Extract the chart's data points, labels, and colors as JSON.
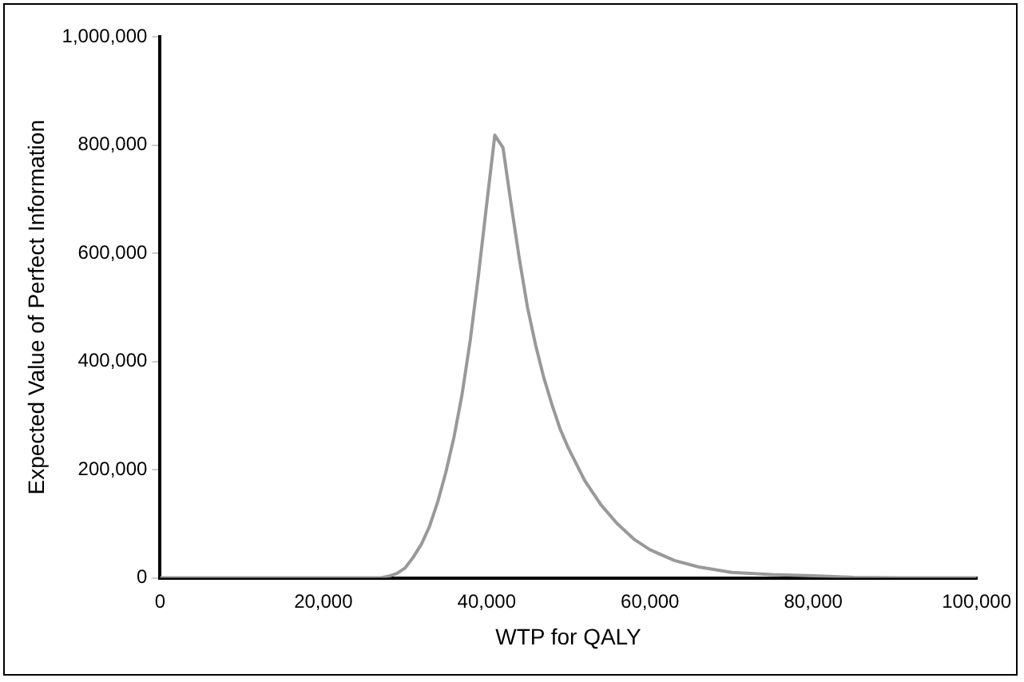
{
  "chart_data": {
    "type": "line",
    "xlabel": "WTP for QALY",
    "ylabel": "Expected Value of Perfect Information",
    "x": [
      0,
      10000,
      20000,
      27000,
      28000,
      29000,
      30000,
      31000,
      32000,
      33000,
      34000,
      35000,
      36000,
      37000,
      38000,
      39000,
      40000,
      41000,
      42000,
      43000,
      44000,
      45000,
      46000,
      47000,
      48000,
      49000,
      50000,
      52000,
      54000,
      56000,
      58000,
      60000,
      63000,
      66000,
      70000,
      75000,
      80000,
      85000,
      90000,
      100000
    ],
    "series": [
      {
        "color": "#999999",
        "values": [
          0,
          0,
          0,
          0,
          3000,
          8000,
          18000,
          38000,
          62000,
          95000,
          140000,
          195000,
          260000,
          340000,
          440000,
          560000,
          690000,
          818000,
          795000,
          690000,
          590000,
          500000,
          430000,
          370000,
          320000,
          275000,
          240000,
          180000,
          135000,
          100000,
          72000,
          52000,
          32000,
          20000,
          10000,
          6000,
          4000,
          1000,
          0,
          0
        ]
      }
    ],
    "xlim": [
      0,
      100000
    ],
    "xticks": [
      0,
      {
        "value": 20000,
        "label": "20,000"
      },
      {
        "value": 40000,
        "label": "40,000"
      },
      {
        "value": 60000,
        "label": "60,000"
      },
      {
        "value": 80000,
        "label": "80,000"
      },
      {
        "value": 100000,
        "label": "100,000"
      }
    ],
    "ylim": [
      0,
      1000000
    ],
    "yticks": [
      0,
      {
        "value": 200000,
        "label": "200,000"
      },
      {
        "value": 400000,
        "label": "400,000"
      },
      {
        "value": 600000,
        "label": "600,000"
      },
      {
        "value": 800000,
        "label": "800,000"
      },
      {
        "value": 1000000,
        "label": "1,000,000"
      }
    ],
    "grid": false,
    "legend": false,
    "marker": "none",
    "line_style": "solid"
  }
}
